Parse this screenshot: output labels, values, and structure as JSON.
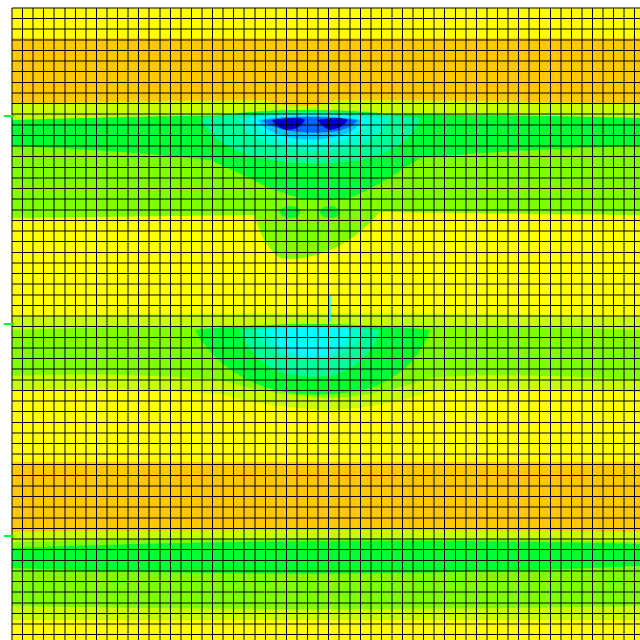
{
  "view": {
    "type": "fea-contour-plot",
    "background_color": "#ffffff",
    "mesh_line_color": "#000000",
    "boundary_marker_color": "#00ff33"
  },
  "palette": {
    "orange": "#ffc800",
    "yellow": "#ffff00",
    "yellow_green": "#c8ff00",
    "light_green": "#80ff00",
    "green": "#00ff33",
    "aqua_green": "#00ff99",
    "teal": "#00ffcc",
    "cyan": "#00ffff",
    "sky_blue": "#00c8ff",
    "blue": "#0066ff",
    "dark_blue": "#0000d0"
  },
  "contour_legend": null
}
